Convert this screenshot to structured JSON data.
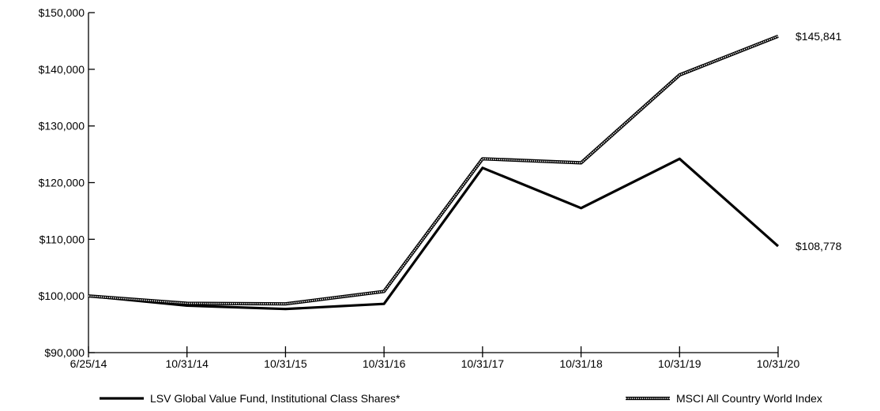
{
  "chart_data": {
    "type": "line",
    "title": "",
    "xlabel": "",
    "ylabel": "",
    "categories": [
      "6/25/14",
      "10/31/14",
      "10/31/15",
      "10/31/16",
      "10/31/17",
      "10/31/18",
      "10/31/19",
      "10/31/20"
    ],
    "ylim": [
      90000,
      150000
    ],
    "yticks": [
      90000,
      100000,
      110000,
      120000,
      130000,
      140000,
      150000
    ],
    "ytick_labels": [
      "$90,000",
      "$100,000",
      "$110,000",
      "$120,000",
      "$130,000",
      "$140,000",
      "$150,000"
    ],
    "grid": false,
    "legend_position": "bottom",
    "series": [
      {
        "name": "LSV Global Value Fund, Institutional Class Shares*",
        "style": "solid",
        "color": "#000000",
        "values": [
          100000,
          98300,
          97700,
          98600,
          122600,
          115500,
          124200,
          108778
        ],
        "end_label": "$108,778"
      },
      {
        "name": "MSCI All Country World Index",
        "style": "dotted",
        "color": "#000000",
        "values": [
          100000,
          98700,
          98600,
          100800,
          124200,
          123500,
          139000,
          145841
        ],
        "end_label": "$145,841"
      }
    ]
  }
}
